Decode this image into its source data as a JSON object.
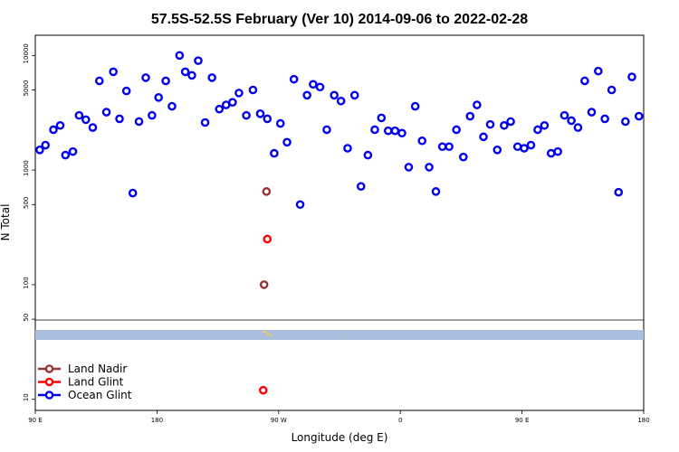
{
  "chart_data": {
    "type": "scatter",
    "title": "57.5S-52.5S February (Ver 10)   2014-09-06 to 2022-02-28",
    "xlabel": "Longitude (deg E)",
    "ylabel": "N Total",
    "y_scale": "log",
    "ylim": [
      8,
      15000
    ],
    "x_ticks": [
      {
        "label": "90 E"
      },
      {
        "label": "180"
      },
      {
        "label": "90 W"
      },
      {
        "label": "0"
      },
      {
        "label": "90 E"
      },
      {
        "label": "180"
      }
    ],
    "y_ticks": [
      {
        "value": 10,
        "label": "10"
      },
      {
        "value": 50,
        "label": "50"
      },
      {
        "value": 100,
        "label": "100"
      },
      {
        "value": 500,
        "label": "500"
      },
      {
        "value": 1000,
        "label": "1000"
      },
      {
        "value": 5000,
        "label": "5000"
      },
      {
        "value": 10000,
        "label": "10000"
      }
    ],
    "x_axis_note": "Longitude runs continuously from 90 E eastward through 180, 90 W, 0, 90 E to 180 (x values below are continuous degrees, 90 to 540).",
    "map_strip": {
      "band_color": "#aabfdd",
      "land_color": "#e6cc66"
    },
    "series": [
      {
        "name": "Land Nadir",
        "color": "#993333",
        "points": [
          [
            259.2,
            100
          ],
          [
            261.0,
            650
          ]
        ]
      },
      {
        "name": "Land Glint",
        "color": "#ff0000",
        "points": [
          [
            261.6,
            250
          ],
          [
            258.6,
            12
          ]
        ]
      },
      {
        "name": "Ocean Glint",
        "color": "#0000ee",
        "points": [
          [
            93.3,
            1500
          ],
          [
            97.5,
            1650
          ],
          [
            103.4,
            2250
          ],
          [
            108.4,
            2450
          ],
          [
            112.3,
            1350
          ],
          [
            117.8,
            1450
          ],
          [
            122.4,
            3000
          ],
          [
            127.4,
            2750
          ],
          [
            132.5,
            2350
          ],
          [
            137.4,
            6000
          ],
          [
            142.6,
            3200
          ],
          [
            147.7,
            7200
          ],
          [
            152.3,
            2800
          ],
          [
            157.4,
            4900
          ],
          [
            162.1,
            630
          ],
          [
            166.7,
            2650
          ],
          [
            171.7,
            6400
          ],
          [
            176.3,
            3000
          ],
          [
            181.2,
            4300
          ],
          [
            186.5,
            6000
          ],
          [
            191.1,
            3600
          ],
          [
            196.7,
            10000
          ],
          [
            200.9,
            7200
          ],
          [
            205.8,
            6700
          ],
          [
            210.5,
            9000
          ],
          [
            215.6,
            2600
          ],
          [
            220.7,
            6400
          ],
          [
            226.1,
            3400
          ],
          [
            231.1,
            3700
          ],
          [
            235.9,
            3900
          ],
          [
            240.6,
            4700
          ],
          [
            246.1,
            3000
          ],
          [
            251.0,
            5000
          ],
          [
            256.4,
            3100
          ],
          [
            261.6,
            2800
          ],
          [
            266.7,
            1400
          ],
          [
            271.3,
            2550
          ],
          [
            276.2,
            1750
          ],
          [
            281.3,
            6200
          ],
          [
            285.9,
            500
          ],
          [
            291.0,
            4500
          ],
          [
            295.5,
            5600
          ],
          [
            300.6,
            5300
          ],
          [
            305.6,
            2250
          ],
          [
            311.1,
            4500
          ],
          [
            316.1,
            4000
          ],
          [
            321.0,
            1550
          ],
          [
            326.2,
            4500
          ],
          [
            330.9,
            720
          ],
          [
            336.0,
            1350
          ],
          [
            341.1,
            2250
          ],
          [
            346.0,
            2850
          ],
          [
            351.0,
            2200
          ],
          [
            356.1,
            2200
          ],
          [
            361.2,
            2100
          ],
          [
            366.2,
            1060
          ],
          [
            371.0,
            3600
          ],
          [
            376.1,
            1800
          ],
          [
            381.3,
            1060
          ],
          [
            386.3,
            650
          ],
          [
            391.1,
            1600
          ],
          [
            396.1,
            1600
          ],
          [
            401.5,
            2250
          ],
          [
            406.6,
            1300
          ],
          [
            411.6,
            2950
          ],
          [
            416.7,
            3700
          ],
          [
            421.5,
            1950
          ],
          [
            426.5,
            2500
          ],
          [
            431.7,
            1500
          ],
          [
            436.8,
            2450
          ],
          [
            441.6,
            2650
          ],
          [
            446.7,
            1600
          ],
          [
            451.6,
            1550
          ],
          [
            456.6,
            1650
          ],
          [
            461.6,
            2250
          ],
          [
            466.6,
            2450
          ],
          [
            471.5,
            1400
          ],
          [
            476.5,
            1450
          ],
          [
            481.4,
            3000
          ],
          [
            486.5,
            2700
          ],
          [
            491.4,
            2350
          ],
          [
            496.4,
            6000
          ],
          [
            501.5,
            3200
          ],
          [
            506.4,
            7300
          ],
          [
            511.3,
            2800
          ],
          [
            516.3,
            5000
          ],
          [
            521.4,
            640
          ],
          [
            526.5,
            2650
          ],
          [
            531.3,
            6500
          ],
          [
            536.5,
            2950
          ]
        ]
      }
    ],
    "legend": {
      "position": "bottom-left"
    }
  }
}
